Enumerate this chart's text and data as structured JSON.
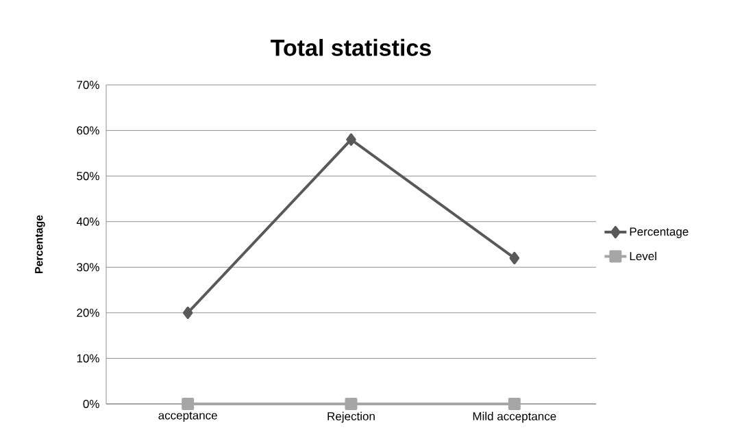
{
  "chart_data": {
    "type": "line",
    "title": "Total  statistics",
    "ylabel": "Percentage",
    "categories": [
      "acceptance",
      "Rejection",
      "Mild acceptance"
    ],
    "series": [
      {
        "name": "Percentage",
        "color": "#595959",
        "marker": "diamond",
        "values": [
          20,
          58,
          32
        ]
      },
      {
        "name": "Level",
        "color": "#a6a6a6",
        "marker": "square",
        "values": [
          0,
          0,
          0
        ]
      }
    ],
    "ylim": [
      0,
      70
    ],
    "yticks": [
      {
        "value": 0,
        "label": "0%"
      },
      {
        "value": 10,
        "label": "10%"
      },
      {
        "value": 20,
        "label": "20%"
      },
      {
        "value": 30,
        "label": "30%"
      },
      {
        "value": 40,
        "label": "40%"
      },
      {
        "value": 50,
        "label": "50%"
      },
      {
        "value": 60,
        "label": "60%"
      },
      {
        "value": 70,
        "label": "70%"
      }
    ],
    "grid": "y",
    "legend": "right",
    "line_style": "solid"
  }
}
